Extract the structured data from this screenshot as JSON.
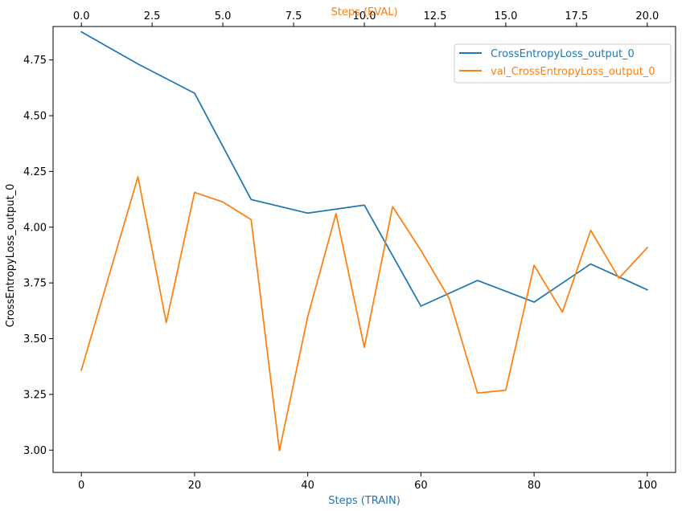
{
  "chart_data": {
    "type": "line",
    "ylabel": "CrossEntropyLoss_output_0",
    "ylim": [
      2.9,
      4.9
    ],
    "yticks": [
      "3.00",
      "3.25",
      "3.50",
      "3.75",
      "4.00",
      "4.25",
      "4.50",
      "4.75"
    ],
    "bottom_axis": {
      "label": "Steps (TRAIN)",
      "color": "#1f77b4",
      "lim": [
        -5,
        105
      ],
      "ticks": [
        "0",
        "20",
        "40",
        "60",
        "80",
        "100"
      ]
    },
    "top_axis": {
      "label": "Steps (EVAL)",
      "color": "#ff7f0e",
      "lim": [
        -1,
        21
      ],
      "ticks": [
        "0.0",
        "2.5",
        "5.0",
        "7.5",
        "10.0",
        "12.5",
        "15.0",
        "17.5",
        "20.0"
      ]
    },
    "legend_position": "top-right",
    "grid": false,
    "series": [
      {
        "name": "CrossEntropyLoss_output_0",
        "axis": "bottom",
        "color": "#1f77b4",
        "x": [
          0,
          10,
          20,
          30,
          40,
          50,
          60,
          70,
          80,
          90,
          100
        ],
        "y": [
          4.876,
          4.732,
          4.601,
          4.124,
          4.063,
          4.099,
          3.646,
          3.761,
          3.664,
          3.835,
          3.719
        ]
      },
      {
        "name": "val_CrossEntropyLoss_output_0",
        "axis": "top",
        "color": "#ff7f0e",
        "x": [
          0,
          1,
          2,
          3,
          4,
          5,
          6,
          7,
          8,
          9,
          10,
          11,
          12,
          13,
          14,
          15,
          16,
          17,
          18,
          19,
          20
        ],
        "y": [
          3.359,
          3.793,
          4.226,
          3.572,
          4.156,
          4.113,
          4.034,
          2.998,
          3.599,
          4.061,
          3.461,
          4.092,
          3.896,
          3.68,
          3.256,
          3.269,
          3.829,
          3.619,
          3.986,
          3.771,
          3.908
        ]
      }
    ]
  }
}
